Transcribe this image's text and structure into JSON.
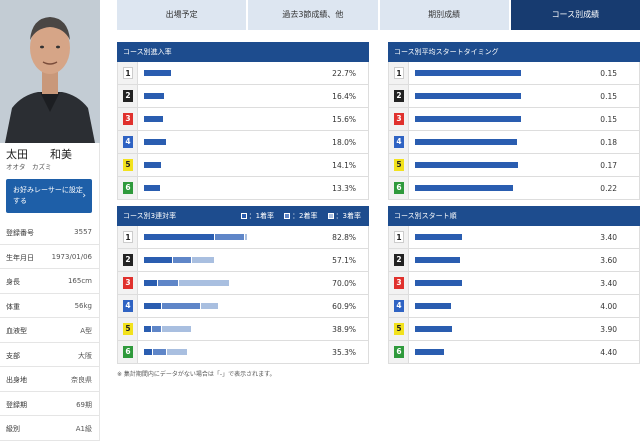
{
  "racer": {
    "name": "太田　　和美",
    "kana": "オオタ　カズミ",
    "photo_alt": "racer-photo"
  },
  "favorite_button": {
    "label": "お好みレーサーに設定する",
    "arrow": "›"
  },
  "profile": [
    {
      "label": "登録番号",
      "value": "3557"
    },
    {
      "label": "生年月日",
      "value": "1973/01/06"
    },
    {
      "label": "身長",
      "value": "165cm"
    },
    {
      "label": "体重",
      "value": "56kg"
    },
    {
      "label": "血液型",
      "value": "A型"
    },
    {
      "label": "支部",
      "value": "大阪"
    },
    {
      "label": "出身地",
      "value": "奈良県"
    },
    {
      "label": "登録期",
      "value": "69期"
    },
    {
      "label": "級別",
      "value": "A1級"
    }
  ],
  "tabs": [
    {
      "label": "出場予定",
      "active": false
    },
    {
      "label": "過去3節成績、他",
      "active": false
    },
    {
      "label": "期別成績",
      "active": false
    },
    {
      "label": "コース別成績",
      "active": true
    }
  ],
  "lane_colors": {
    "1": {
      "bg": "#ffffff",
      "fg": "#222222"
    },
    "2": {
      "bg": "#222222",
      "fg": "#ffffff"
    },
    "3": {
      "bg": "#e0312d",
      "fg": "#ffffff"
    },
    "4": {
      "bg": "#2f63c3",
      "fg": "#ffffff"
    },
    "5": {
      "bg": "#f2e21c",
      "fg": "#222222"
    },
    "6": {
      "bg": "#2f9a3c",
      "fg": "#ffffff"
    }
  },
  "bar_colors": {
    "first": "#2a5db0",
    "second": "#5f86c8",
    "third": "#a9bfe0"
  },
  "panels": {
    "entry_rate": {
      "title": "コース別進入率",
      "rows": [
        {
          "lane": "1",
          "value": "22.7%",
          "fraction": 0.227
        },
        {
          "lane": "2",
          "value": "16.4%",
          "fraction": 0.164
        },
        {
          "lane": "3",
          "value": "15.6%",
          "fraction": 0.156
        },
        {
          "lane": "4",
          "value": "18.0%",
          "fraction": 0.18
        },
        {
          "lane": "5",
          "value": "14.1%",
          "fraction": 0.141
        },
        {
          "lane": "6",
          "value": "13.3%",
          "fraction": 0.133
        }
      ]
    },
    "start_timing": {
      "title": "コース別平均スタートタイミング",
      "rows": [
        {
          "lane": "1",
          "value": "0.15",
          "fraction": 0.96
        },
        {
          "lane": "2",
          "value": "0.15",
          "fraction": 0.96
        },
        {
          "lane": "3",
          "value": "0.15",
          "fraction": 0.96
        },
        {
          "lane": "4",
          "value": "0.18",
          "fraction": 0.93
        },
        {
          "lane": "5",
          "value": "0.17",
          "fraction": 0.94
        },
        {
          "lane": "6",
          "value": "0.22",
          "fraction": 0.89
        }
      ]
    },
    "top3_rate": {
      "title": "コース別3連対率",
      "legend": [
        "：1着率",
        "：2着率",
        "：3着率"
      ],
      "rows": [
        {
          "lane": "1",
          "value": "82.8%",
          "segments": [
            0.47,
            0.2,
            0.02
          ]
        },
        {
          "lane": "2",
          "value": "57.1%",
          "segments": [
            0.19,
            0.13,
            0.15
          ]
        },
        {
          "lane": "3",
          "value": "70.0%",
          "segments": [
            0.09,
            0.14,
            0.34
          ]
        },
        {
          "lane": "4",
          "value": "60.9%",
          "segments": [
            0.12,
            0.26,
            0.12
          ]
        },
        {
          "lane": "5",
          "value": "38.9%",
          "segments": [
            0.05,
            0.07,
            0.2
          ]
        },
        {
          "lane": "6",
          "value": "35.3%",
          "segments": [
            0.06,
            0.09,
            0.14
          ]
        }
      ]
    },
    "start_order": {
      "title": "コース別スタート順",
      "rows": [
        {
          "lane": "1",
          "value": "3.40",
          "fraction": 0.43
        },
        {
          "lane": "2",
          "value": "3.60",
          "fraction": 0.41
        },
        {
          "lane": "3",
          "value": "3.40",
          "fraction": 0.43
        },
        {
          "lane": "4",
          "value": "4.00",
          "fraction": 0.33
        },
        {
          "lane": "5",
          "value": "3.90",
          "fraction": 0.34
        },
        {
          "lane": "6",
          "value": "4.40",
          "fraction": 0.26
        }
      ]
    }
  },
  "footnote": "※ 集計期間内にデータがない場合は「-」で表示されます。"
}
